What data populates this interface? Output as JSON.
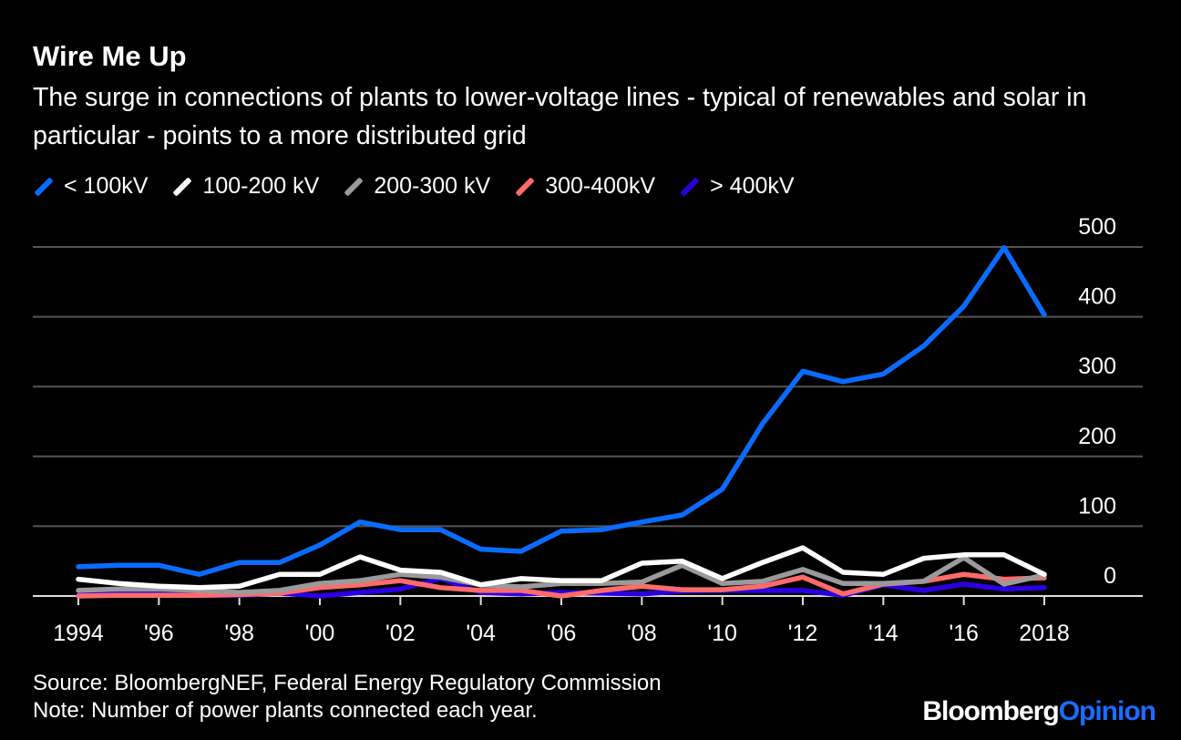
{
  "title": "Wire Me Up",
  "subtitle": "The surge in connections of plants to lower-voltage lines - typical of renewables and solar in particular - points to a more distributed grid",
  "source": "Source: BloombergNEF, Federal Energy Regulatory Commission",
  "note": "Note: Number of power plants connected each year.",
  "logo": {
    "part1": "Bloomberg",
    "part2": "Opinion",
    "color2": "#1a6dff"
  },
  "chart_data": {
    "type": "line",
    "x": [
      1994,
      1995,
      1996,
      1997,
      1998,
      1999,
      2000,
      2001,
      2002,
      2003,
      2004,
      2005,
      2006,
      2007,
      2008,
      2009,
      2010,
      2011,
      2012,
      2013,
      2014,
      2015,
      2016,
      2017,
      2018
    ],
    "xtick_values": [
      1994,
      1996,
      1998,
      2000,
      2002,
      2004,
      2006,
      2008,
      2010,
      2012,
      2014,
      2016,
      2018
    ],
    "xtick_labels": [
      "1994",
      "'96",
      "'98",
      "'00",
      "'02",
      "'04",
      "'06",
      "'08",
      "'10",
      "'12",
      "'14",
      "'16",
      "2018"
    ],
    "ylim": [
      0,
      500
    ],
    "yticks": [
      0,
      100,
      200,
      300,
      400,
      500
    ],
    "grid": true,
    "legend_position": "top-left",
    "series": [
      {
        "name": "< 100kV",
        "color": "#0a6cff",
        "values": [
          42,
          44,
          44,
          31,
          48,
          48,
          73,
          106,
          95,
          95,
          67,
          64,
          93,
          95,
          106,
          116,
          153,
          247,
          322,
          307,
          318,
          358,
          415,
          499,
          403
        ]
      },
      {
        "name": "100-200 kV",
        "color": "#ffffff",
        "values": [
          24,
          18,
          14,
          12,
          14,
          31,
          31,
          56,
          37,
          34,
          16,
          25,
          22,
          22,
          47,
          50,
          25,
          48,
          69,
          34,
          31,
          54,
          59,
          59,
          31
        ]
      },
      {
        "name": "200-300 kV",
        "color": "#9a9a9a",
        "values": [
          8,
          10,
          10,
          8,
          5,
          8,
          18,
          22,
          31,
          27,
          16,
          13,
          18,
          18,
          20,
          44,
          18,
          21,
          38,
          18,
          18,
          21,
          55,
          17,
          30
        ]
      },
      {
        "name": "300-400kV",
        "color": "#ff6b6b",
        "values": [
          0,
          1,
          1,
          1,
          2,
          4,
          12,
          16,
          22,
          12,
          8,
          8,
          0,
          8,
          14,
          9,
          9,
          14,
          27,
          3,
          17,
          21,
          31,
          24,
          26
        ]
      },
      {
        "name": "> 400kV",
        "color": "#2a00e0",
        "values": [
          1,
          4,
          4,
          1,
          1,
          4,
          0,
          5,
          10,
          25,
          5,
          3,
          5,
          4,
          3,
          7,
          8,
          8,
          8,
          1,
          16,
          8,
          17,
          10,
          12
        ]
      }
    ]
  }
}
